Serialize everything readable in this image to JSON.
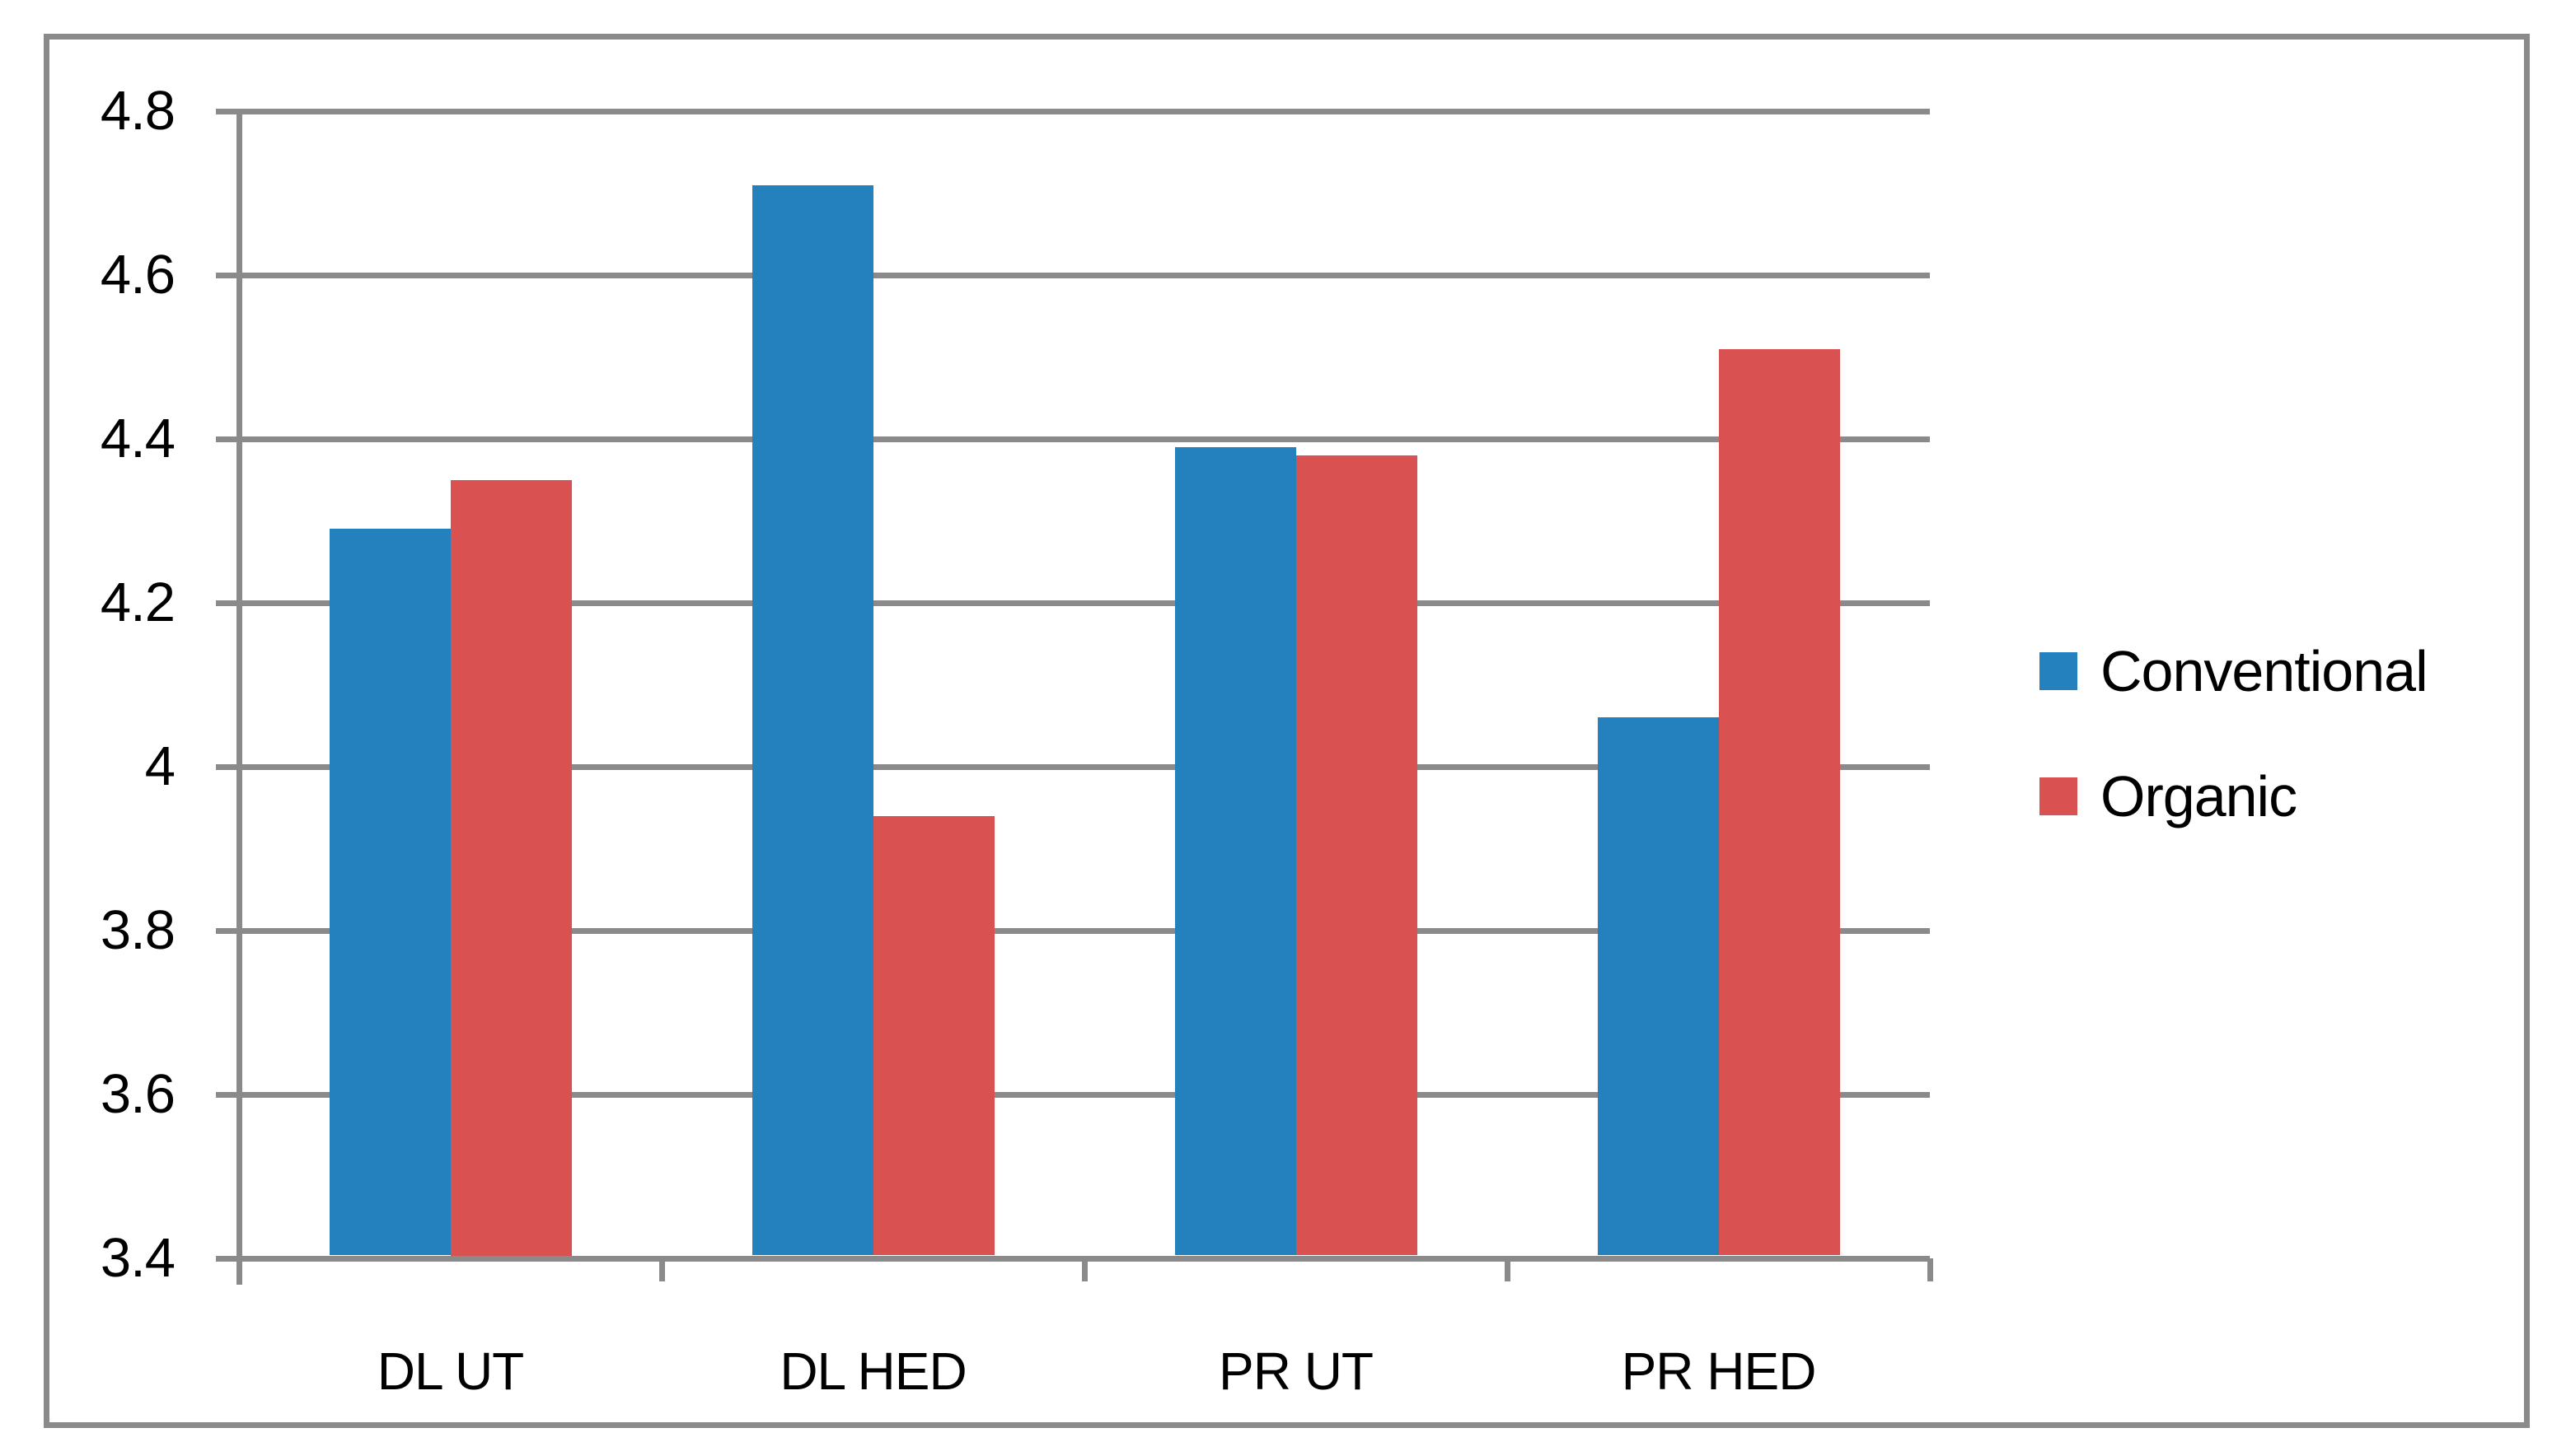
{
  "chart_data": {
    "type": "bar",
    "title": "",
    "categories": [
      "DL UT",
      "DL HED",
      "PR UT",
      "PR HED"
    ],
    "series": [
      {
        "name": "Conventional",
        "color": "#2581BE",
        "values": [
          4.29,
          4.71,
          4.39,
          4.06
        ]
      },
      {
        "name": "Organic",
        "color": "#D95151",
        "values": [
          4.35,
          3.94,
          4.38,
          4.51
        ]
      }
    ],
    "xlabel": "",
    "ylabel": "",
    "ylim": [
      3.4,
      4.8
    ],
    "ytick_step": 0.2,
    "ytick_labels": [
      "4.8",
      "4.6",
      "4.4",
      "4.2",
      "4",
      "3.8",
      "3.6",
      "3.4"
    ],
    "grid": true,
    "legend_position": "right"
  },
  "legend": {
    "items": [
      {
        "label": "Conventional",
        "color": "#2581BE"
      },
      {
        "label": "Organic",
        "color": "#D95151"
      }
    ]
  },
  "colors": {
    "grid": "#8a8a8a",
    "border": "#8a8a8a",
    "background": "#ffffff",
    "text": "#000000"
  }
}
